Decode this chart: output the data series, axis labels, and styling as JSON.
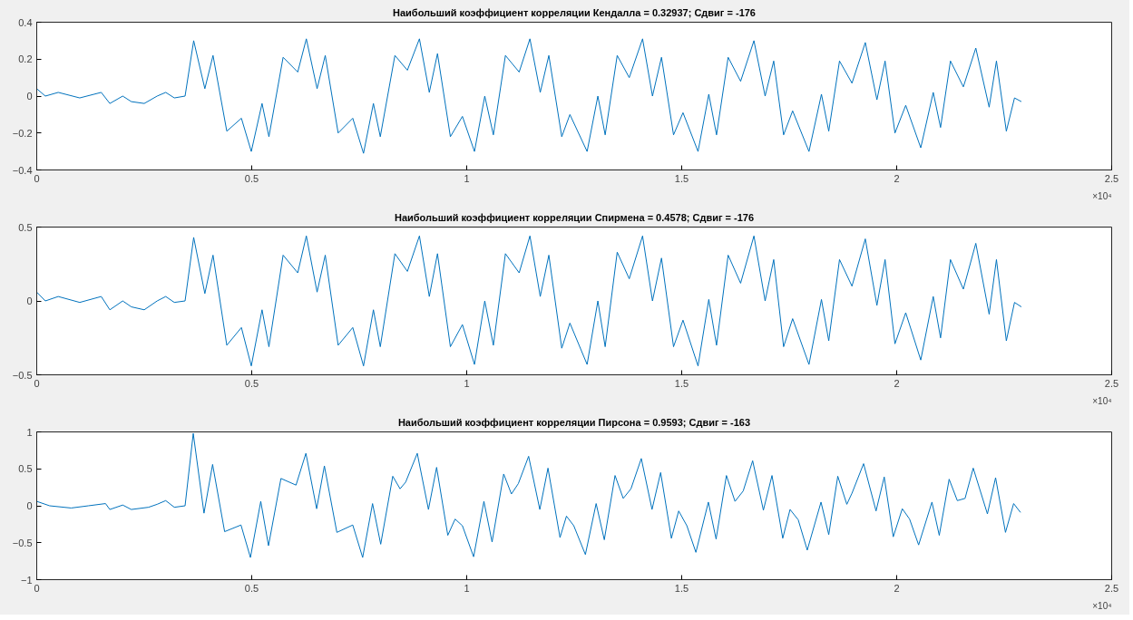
{
  "chart_data": [
    {
      "type": "line",
      "title": "Наибольший коэффициент корреляции Кендалла = 0.32937; Сдвиг = -176",
      "annotations": [
        "×10⁴"
      ],
      "grid": false,
      "xlim": [
        0,
        2.5
      ],
      "xticks": [
        0,
        0.5,
        1,
        1.5,
        2,
        2.5
      ],
      "ylim": [
        -0.4,
        0.4
      ],
      "yticks": [
        -0.4,
        -0.2,
        0,
        0.2,
        0.4
      ],
      "series": [
        {
          "color": "#0072bd",
          "x": [
            0,
            0.02,
            0.05,
            0.1,
            0.15,
            0.17,
            0.2,
            0.22,
            0.25,
            0.28,
            0.3,
            0.32,
            0.345,
            0.365,
            0.391,
            0.41,
            0.442,
            0.476,
            0.499,
            0.524,
            0.54,
            0.573,
            0.607,
            0.627,
            0.652,
            0.671,
            0.701,
            0.735,
            0.76,
            0.783,
            0.799,
            0.833,
            0.862,
            0.89,
            0.913,
            0.932,
            0.962,
            0.99,
            1.018,
            1.042,
            1.062,
            1.09,
            1.122,
            1.147,
            1.171,
            1.191,
            1.221,
            1.24,
            1.28,
            1.305,
            1.322,
            1.35,
            1.378,
            1.409,
            1.432,
            1.453,
            1.481,
            1.503,
            1.538,
            1.563,
            1.581,
            1.608,
            1.637,
            1.668,
            1.694,
            1.714,
            1.737,
            1.758,
            1.796,
            1.825,
            1.842,
            1.867,
            1.896,
            1.927,
            1.954,
            1.973,
            1.996,
            2.021,
            2.056,
            2.085,
            2.102,
            2.125,
            2.155,
            2.184,
            2.215,
            2.232,
            2.255,
            2.274,
            2.29
          ],
          "values": [
            0.04,
            0.0,
            0.02,
            -0.01,
            0.02,
            -0.04,
            0.0,
            -0.03,
            -0.04,
            0.0,
            0.02,
            -0.01,
            0.0,
            0.3,
            0.04,
            0.22,
            -0.19,
            -0.12,
            -0.3,
            -0.04,
            -0.22,
            0.21,
            0.13,
            0.31,
            0.04,
            0.22,
            -0.2,
            -0.12,
            -0.31,
            -0.04,
            -0.22,
            0.22,
            0.14,
            0.31,
            0.02,
            0.23,
            -0.22,
            -0.11,
            -0.3,
            0.0,
            -0.21,
            0.22,
            0.13,
            0.31,
            0.02,
            0.22,
            -0.22,
            -0.1,
            -0.3,
            0.0,
            -0.21,
            0.22,
            0.1,
            0.31,
            0.0,
            0.21,
            -0.21,
            -0.09,
            -0.3,
            0.01,
            -0.21,
            0.21,
            0.08,
            0.3,
            0.0,
            0.19,
            -0.21,
            -0.08,
            -0.3,
            0.01,
            -0.19,
            0.19,
            0.07,
            0.29,
            -0.02,
            0.19,
            -0.2,
            -0.05,
            -0.28,
            0.02,
            -0.17,
            0.19,
            0.05,
            0.26,
            -0.06,
            0.19,
            -0.19,
            -0.01,
            -0.03
          ]
        }
      ]
    },
    {
      "type": "line",
      "title": "Наибольший коэффициент корреляции Спирмена = 0.4578; Сдвиг = -176",
      "annotations": [
        "×10⁴"
      ],
      "grid": false,
      "xlim": [
        0,
        2.5
      ],
      "xticks": [
        0,
        0.5,
        1,
        1.5,
        2,
        2.5
      ],
      "ylim": [
        -0.5,
        0.5
      ],
      "yticks": [
        -0.5,
        0,
        0.5
      ],
      "series": [
        {
          "color": "#0072bd",
          "x": [
            0,
            0.02,
            0.05,
            0.1,
            0.15,
            0.17,
            0.2,
            0.22,
            0.25,
            0.28,
            0.3,
            0.32,
            0.345,
            0.365,
            0.391,
            0.41,
            0.442,
            0.476,
            0.499,
            0.524,
            0.54,
            0.573,
            0.607,
            0.627,
            0.652,
            0.671,
            0.701,
            0.735,
            0.76,
            0.783,
            0.799,
            0.833,
            0.862,
            0.89,
            0.913,
            0.932,
            0.962,
            0.99,
            1.018,
            1.042,
            1.062,
            1.09,
            1.122,
            1.147,
            1.171,
            1.191,
            1.221,
            1.24,
            1.28,
            1.305,
            1.322,
            1.35,
            1.378,
            1.409,
            1.432,
            1.453,
            1.481,
            1.503,
            1.538,
            1.563,
            1.581,
            1.608,
            1.637,
            1.668,
            1.694,
            1.714,
            1.737,
            1.758,
            1.796,
            1.825,
            1.842,
            1.867,
            1.896,
            1.927,
            1.954,
            1.973,
            1.996,
            2.021,
            2.056,
            2.085,
            2.102,
            2.125,
            2.155,
            2.184,
            2.215,
            2.232,
            2.255,
            2.274,
            2.29
          ],
          "values": [
            0.06,
            0.0,
            0.03,
            -0.01,
            0.03,
            -0.06,
            0.0,
            -0.04,
            -0.06,
            0.0,
            0.03,
            -0.01,
            0.0,
            0.43,
            0.05,
            0.31,
            -0.3,
            -0.18,
            -0.44,
            -0.06,
            -0.31,
            0.31,
            0.19,
            0.44,
            0.06,
            0.31,
            -0.3,
            -0.18,
            -0.44,
            -0.06,
            -0.31,
            0.32,
            0.2,
            0.44,
            0.03,
            0.32,
            -0.31,
            -0.16,
            -0.43,
            0.0,
            -0.3,
            0.32,
            0.19,
            0.44,
            0.03,
            0.31,
            -0.32,
            -0.15,
            -0.43,
            0.0,
            -0.31,
            0.33,
            0.15,
            0.44,
            0.0,
            0.29,
            -0.31,
            -0.13,
            -0.44,
            0.01,
            -0.3,
            0.31,
            0.12,
            0.44,
            0.0,
            0.28,
            -0.31,
            -0.12,
            -0.43,
            0.01,
            -0.27,
            0.28,
            0.1,
            0.42,
            -0.03,
            0.28,
            -0.29,
            -0.08,
            -0.4,
            0.03,
            -0.25,
            0.28,
            0.08,
            0.39,
            -0.09,
            0.28,
            -0.27,
            -0.01,
            -0.04
          ]
        }
      ]
    },
    {
      "type": "line",
      "title": "Наибольший коэффициент корреляции Пирсона = 0.9593; Сдвиг = -163",
      "annotations": [
        "×10⁴"
      ],
      "grid": false,
      "xlim": [
        0,
        2.5
      ],
      "xticks": [
        0,
        0.5,
        1,
        1.5,
        2,
        2.5
      ],
      "ylim": [
        -1,
        1
      ],
      "yticks": [
        -1,
        -0.5,
        0,
        0.5,
        1
      ],
      "series": [
        {
          "color": "#0072bd",
          "x": [
            0,
            0.03,
            0.08,
            0.12,
            0.16,
            0.17,
            0.2,
            0.22,
            0.26,
            0.28,
            0.3,
            0.32,
            0.345,
            0.364,
            0.389,
            0.409,
            0.437,
            0.475,
            0.497,
            0.521,
            0.539,
            0.568,
            0.603,
            0.626,
            0.651,
            0.669,
            0.698,
            0.735,
            0.758,
            0.781,
            0.8,
            0.828,
            0.845,
            0.858,
            0.885,
            0.911,
            0.93,
            0.956,
            0.973,
            0.99,
            1.016,
            1.04,
            1.059,
            1.086,
            1.104,
            1.12,
            1.144,
            1.17,
            1.189,
            1.217,
            1.232,
            1.249,
            1.276,
            1.301,
            1.32,
            1.345,
            1.364,
            1.382,
            1.406,
            1.431,
            1.451,
            1.476,
            1.493,
            1.512,
            1.533,
            1.562,
            1.58,
            1.604,
            1.624,
            1.643,
            1.665,
            1.69,
            1.71,
            1.735,
            1.752,
            1.771,
            1.792,
            1.824,
            1.842,
            1.863,
            1.884,
            1.896,
            1.923,
            1.952,
            1.971,
            1.992,
            2.013,
            2.03,
            2.051,
            2.082,
            2.099,
            2.122,
            2.141,
            2.159,
            2.178,
            2.211,
            2.23,
            2.253,
            2.272,
            2.288
          ],
          "values": [
            0.06,
            0.0,
            -0.03,
            0.0,
            0.03,
            -0.05,
            0.01,
            -0.05,
            -0.02,
            0.02,
            0.07,
            -0.02,
            0.0,
            0.98,
            -0.1,
            0.56,
            -0.35,
            -0.26,
            -0.7,
            0.06,
            -0.54,
            0.37,
            0.28,
            0.71,
            -0.04,
            0.54,
            -0.36,
            -0.26,
            -0.7,
            0.03,
            -0.52,
            0.4,
            0.23,
            0.32,
            0.71,
            -0.05,
            0.52,
            -0.4,
            -0.18,
            -0.27,
            -0.69,
            0.06,
            -0.49,
            0.43,
            0.16,
            0.3,
            0.67,
            -0.05,
            0.51,
            -0.43,
            -0.14,
            -0.27,
            -0.66,
            0.03,
            -0.46,
            0.41,
            0.1,
            0.23,
            0.64,
            -0.05,
            0.45,
            -0.44,
            -0.07,
            -0.27,
            -0.63,
            0.05,
            -0.45,
            0.41,
            0.06,
            0.2,
            0.61,
            -0.06,
            0.41,
            -0.44,
            -0.05,
            -0.19,
            -0.6,
            0.05,
            -0.39,
            0.4,
            0.02,
            0.17,
            0.57,
            -0.07,
            0.39,
            -0.42,
            -0.04,
            -0.18,
            -0.53,
            0.05,
            -0.4,
            0.36,
            0.07,
            0.1,
            0.51,
            -0.11,
            0.38,
            -0.36,
            0.03,
            -0.09
          ]
        }
      ]
    }
  ]
}
